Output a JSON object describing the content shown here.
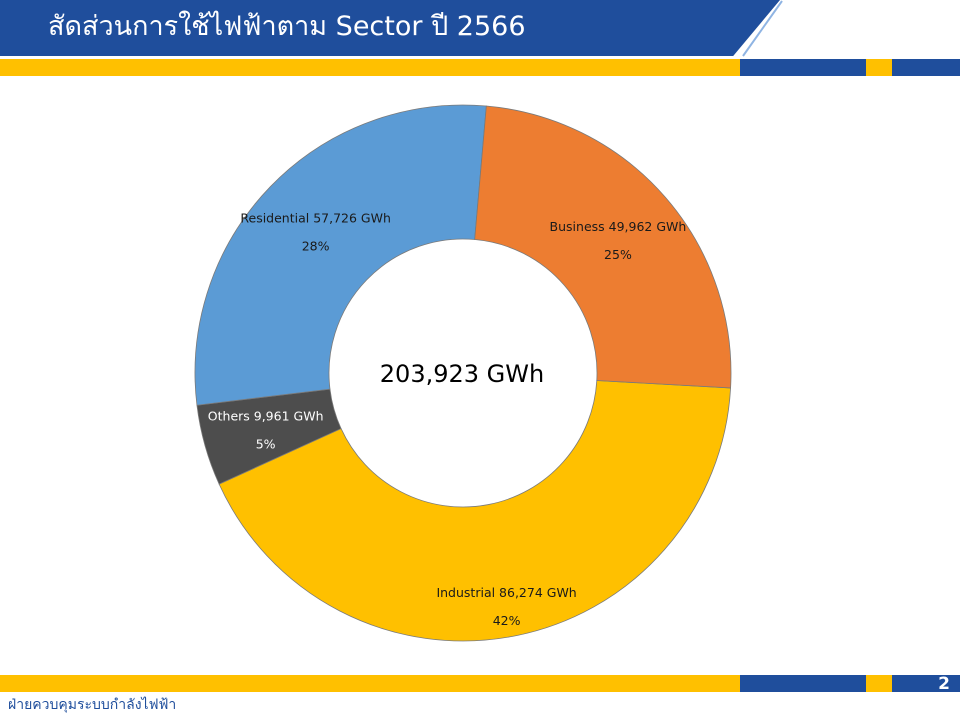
{
  "header": {
    "title": "สัดส่วนการใช้ไฟฟ้าตาม Sector ปี 2566"
  },
  "footer": {
    "department": "ฝ่ายควบคุมระบบกำลังไฟฟ้า",
    "page_number": "2"
  },
  "colors": {
    "navy": "#1f4e9c",
    "gold": "#ffc000"
  },
  "chart_data": {
    "type": "pie",
    "variant": "donut",
    "center_label": "203,923 GWh",
    "slices": [
      {
        "name": "Industrial",
        "value": 86274,
        "label": "Industrial 86,274 GWh",
        "percent_label": "42%",
        "color": "#ffc000"
      },
      {
        "name": "Others",
        "value": 9961,
        "label": "Others 9,961 GWh",
        "percent_label": "5%",
        "color": "#4d4d4d"
      },
      {
        "name": "Residential",
        "value": 57726,
        "label": "Residential 57,726 GWh",
        "percent_label": "28%",
        "color": "#5b9bd5"
      },
      {
        "name": "Business",
        "value": 49962,
        "label": "Business 49,962 GWh",
        "percent_label": "25%",
        "color": "#ed7d31"
      }
    ]
  }
}
